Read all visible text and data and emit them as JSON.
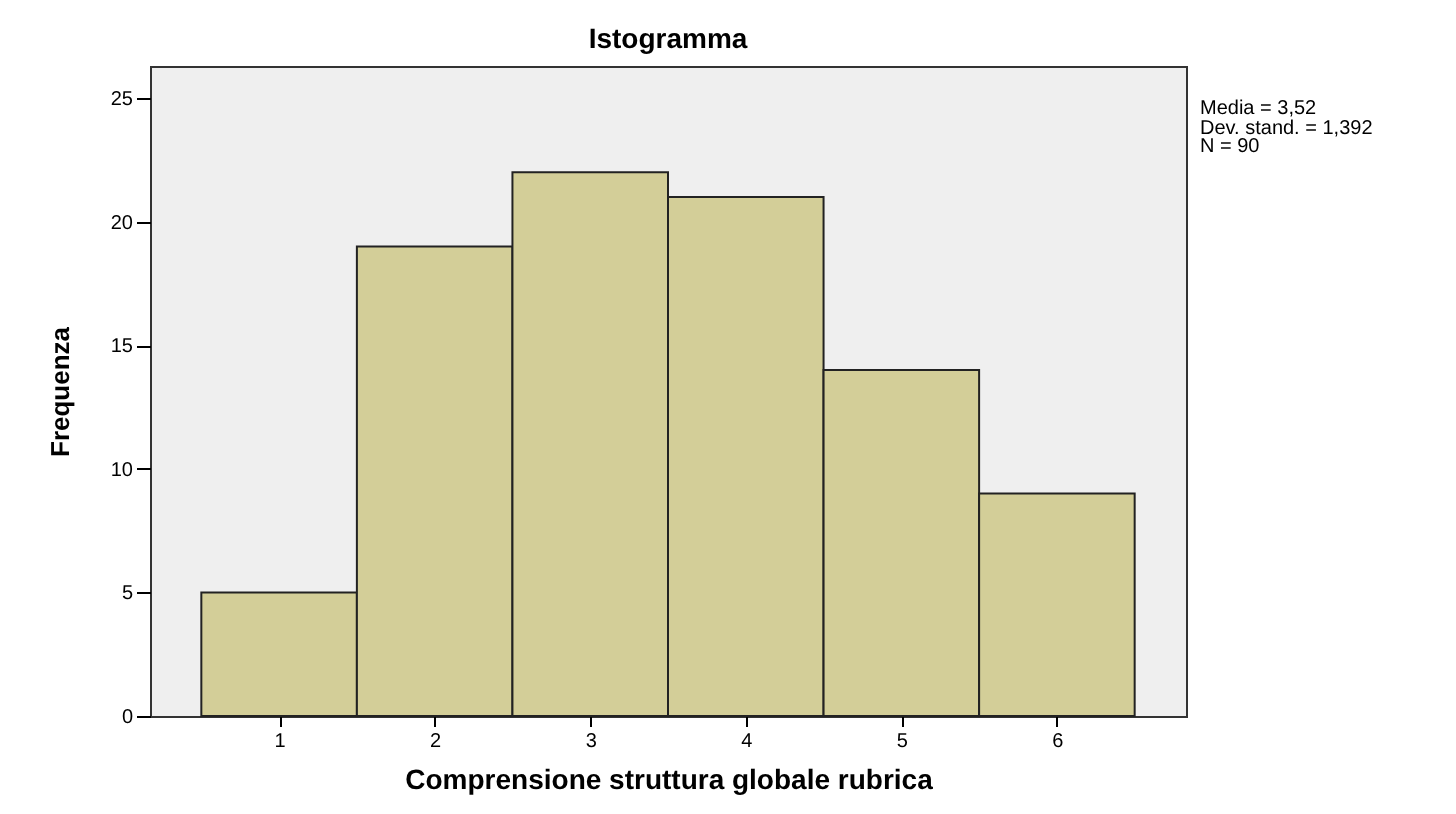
{
  "chart_data": {
    "type": "histogram",
    "title": "Istogramma",
    "xlabel": "Comprensione struttura globale rubrica",
    "ylabel": "Frequenza",
    "bins": [
      0.5,
      1.5,
      2.5,
      3.5,
      4.5,
      5.5,
      6.5
    ],
    "values": [
      5,
      19,
      22,
      21,
      14,
      9
    ],
    "color": "#d3ce98",
    "xlim": [
      0.17,
      6.83
    ],
    "xticks": [
      1,
      2,
      3,
      4,
      5,
      6
    ],
    "ylim": [
      0,
      26.3
    ],
    "yticks": [
      0,
      5,
      10,
      15,
      20,
      25
    ],
    "grid": false,
    "annotations": [
      "Media = 3,52",
      "Dev. stand. = 1,392",
      "N = 90"
    ]
  }
}
